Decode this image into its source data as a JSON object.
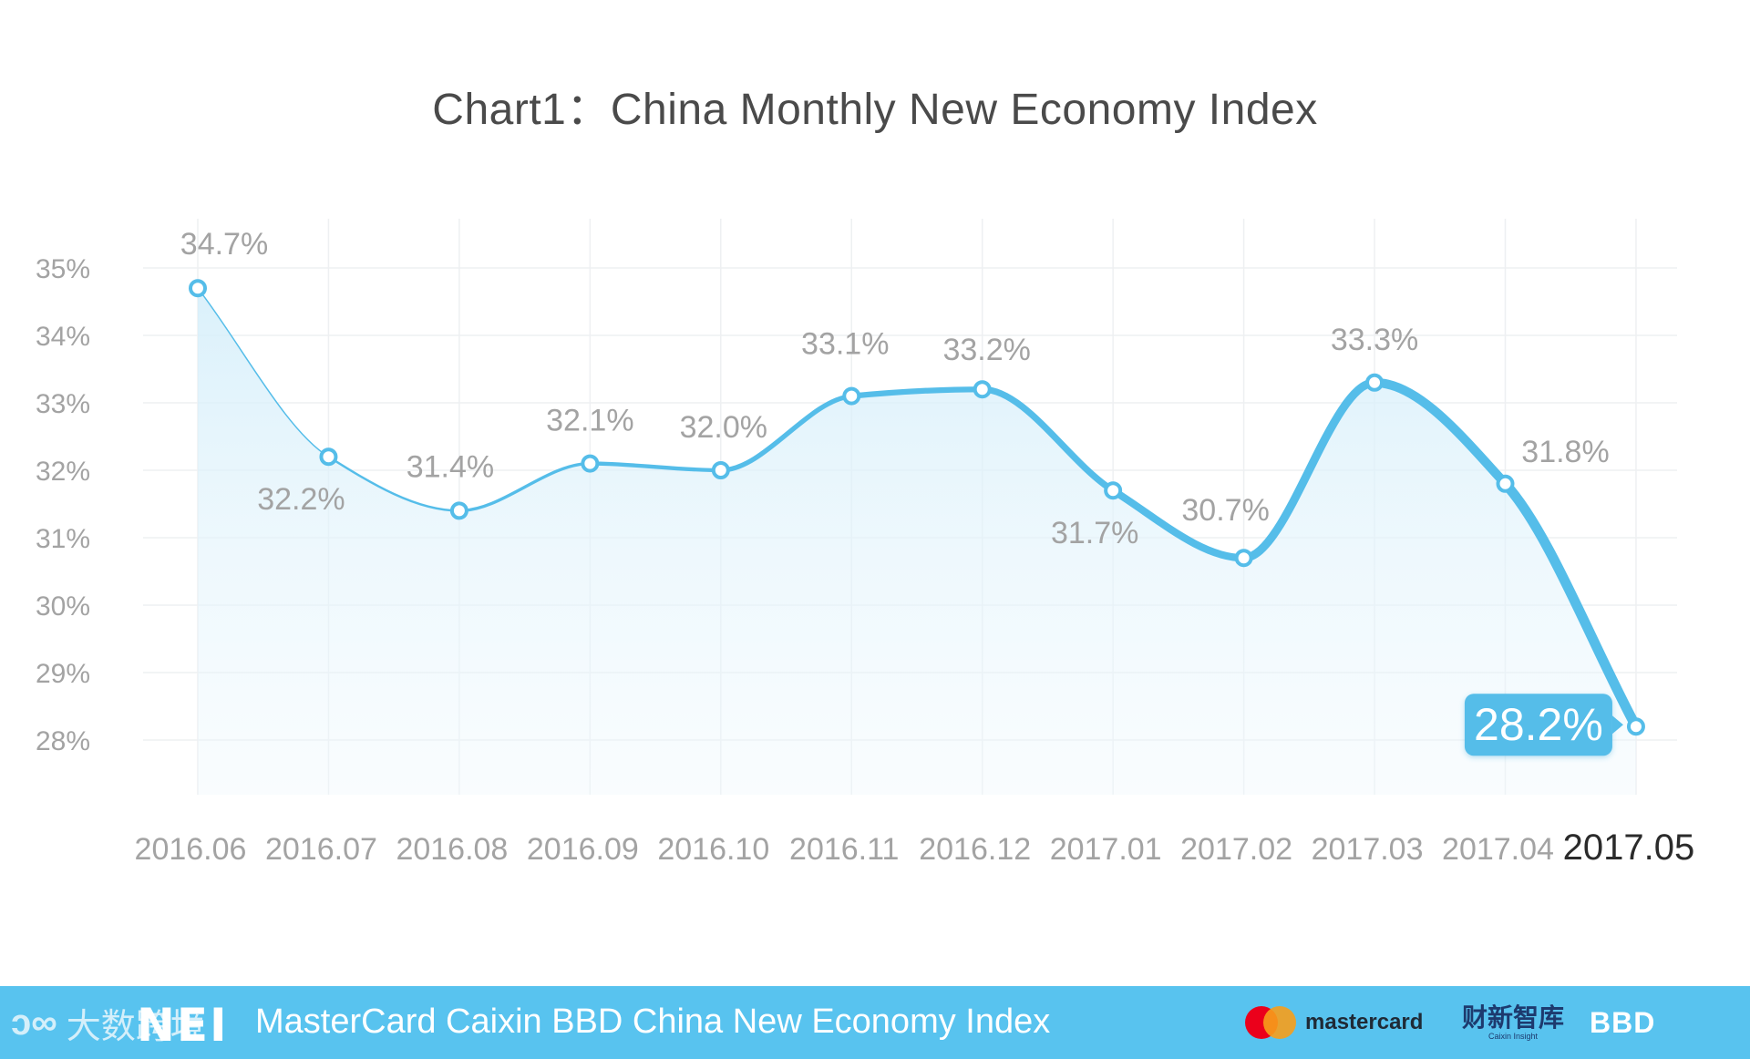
{
  "chart_data": {
    "type": "line",
    "title": "Chart1：China Monthly New Economy Index",
    "categories": [
      "2016.06",
      "2016.07",
      "2016.08",
      "2016.09",
      "2016.10",
      "2016.11",
      "2016.12",
      "2017.01",
      "2017.02",
      "2017.03",
      "2017.04",
      "2017.05"
    ],
    "values": [
      34.7,
      32.2,
      31.4,
      32.1,
      32.0,
      33.1,
      33.2,
      31.7,
      30.7,
      33.3,
      31.8,
      28.2
    ],
    "data_labels": [
      "34.7%",
      "32.2%",
      "31.4%",
      "32.1%",
      "32.0%",
      "33.1%",
      "33.2%",
      "31.7%",
      "30.7%",
      "33.3%",
      "31.8%",
      "28.2%"
    ],
    "yticks": [
      "35%",
      "34%",
      "33%",
      "32%",
      "31%",
      "30%",
      "29%",
      "28%"
    ],
    "ylim": [
      27.2,
      35.6
    ],
    "grid": true,
    "line_color": "#55bde9",
    "highlight_label": "28.2%",
    "highlight_color": "#55bde9",
    "last_category_emphasized": true
  },
  "footer": {
    "title": "MasterCard Caixin BBD China New Economy Index",
    "nei_logo": "NEI",
    "watermark_icon": "ↄ∞",
    "watermark_text": "大数跨境",
    "mastercard_logo": "mastercard",
    "caixin_logo_cn": "财新智库",
    "caixin_logo_en": "Caixin Insight",
    "bbd_logo": "BBD",
    "background_color": "#58c3ef"
  }
}
